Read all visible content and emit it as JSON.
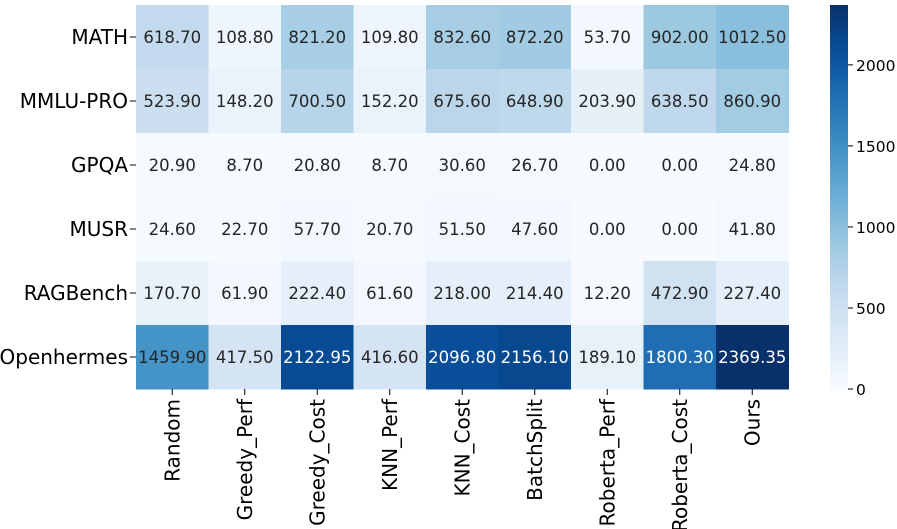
{
  "chart_data": {
    "type": "heatmap",
    "rows": [
      "MATH",
      "MMLU-PRO",
      "GPQA",
      "MUSR",
      "RAGBench",
      "Openhermes"
    ],
    "columns": [
      "Random",
      "Greedy_Perf",
      "Greedy_Cost",
      "KNN_Perf",
      "KNN_Cost",
      "BatchSplit",
      "Roberta_Perf",
      "Roberta_Cost",
      "Ours"
    ],
    "values": [
      [
        618.7,
        108.8,
        821.2,
        109.8,
        832.6,
        872.2,
        53.7,
        902.0,
        1012.5
      ],
      [
        523.9,
        148.2,
        700.5,
        152.2,
        675.6,
        648.9,
        203.9,
        638.5,
        860.9
      ],
      [
        20.9,
        8.7,
        20.8,
        8.7,
        30.6,
        26.7,
        0.0,
        0.0,
        24.8
      ],
      [
        24.6,
        22.7,
        57.7,
        20.7,
        51.5,
        47.6,
        0.0,
        0.0,
        41.8
      ],
      [
        170.7,
        61.9,
        222.4,
        61.6,
        218.0,
        214.4,
        12.2,
        472.9,
        227.4
      ],
      [
        1459.9,
        417.5,
        2122.95,
        416.6,
        2096.8,
        2156.1,
        189.1,
        1800.3,
        2369.35
      ]
    ],
    "value_labels": [
      [
        "618.70",
        "108.80",
        "821.20",
        "109.80",
        "832.60",
        "872.20",
        "53.70",
        "902.00",
        "1012.50"
      ],
      [
        "523.90",
        "148.20",
        "700.50",
        "152.20",
        "675.60",
        "648.90",
        "203.90",
        "638.50",
        "860.90"
      ],
      [
        "20.90",
        "8.70",
        "20.80",
        "8.70",
        "30.60",
        "26.70",
        "0.00",
        "0.00",
        "24.80"
      ],
      [
        "24.60",
        "22.70",
        "57.70",
        "20.70",
        "51.50",
        "47.60",
        "0.00",
        "0.00",
        "41.80"
      ],
      [
        "170.70",
        "61.90",
        "222.40",
        "61.60",
        "218.00",
        "214.40",
        "12.20",
        "472.90",
        "227.40"
      ],
      [
        "1459.90",
        "417.50",
        "2122.95",
        "416.60",
        "2096.80",
        "2156.10",
        "189.10",
        "1800.30",
        "2369.35"
      ]
    ],
    "colormap": "Blues",
    "color_range": [
      0,
      2369.35
    ],
    "colorbar_ticks": [
      "0",
      "500",
      "1000",
      "1500",
      "2000"
    ],
    "colorbar_tick_values": [
      0,
      500,
      1000,
      1500,
      2000
    ],
    "colorbar_placement": "right"
  }
}
